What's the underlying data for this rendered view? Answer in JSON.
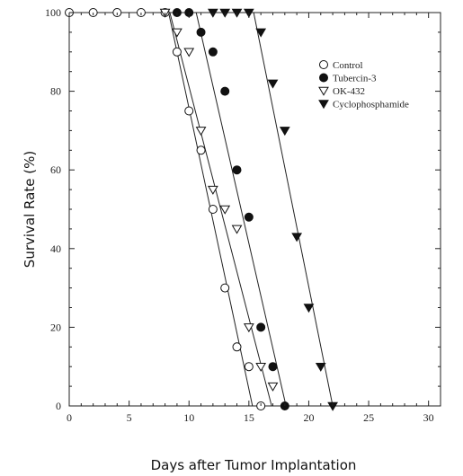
{
  "chart_data": {
    "type": "line",
    "title": "",
    "xlabel": "Days after Tumor Implantation",
    "ylabel": "Survival  Rate (%)",
    "xlim": [
      0,
      31
    ],
    "ylim": [
      0,
      100
    ],
    "x_ticks": [
      0,
      5,
      10,
      15,
      20,
      25,
      30
    ],
    "y_ticks": [
      0,
      20,
      40,
      60,
      80,
      100
    ],
    "grid": false,
    "legend_position": "top-right",
    "series": [
      {
        "name": "Control",
        "marker": "circle-open",
        "x": [
          0,
          2,
          4,
          6,
          8,
          9,
          10,
          11,
          12,
          13,
          14,
          15,
          16
        ],
        "y": [
          100,
          100,
          100,
          100,
          100,
          90,
          75,
          65,
          50,
          30,
          15,
          10,
          0
        ],
        "fit": [
          [
            8.3,
            100
          ],
          [
            15.3,
            0
          ]
        ]
      },
      {
        "name": "Tubercin-3",
        "marker": "circle-filled",
        "x": [
          9,
          10,
          11,
          12,
          13,
          14,
          15,
          16,
          17,
          18
        ],
        "y": [
          100,
          100,
          95,
          90,
          80,
          60,
          48,
          20,
          10,
          0
        ],
        "fit": [
          [
            10.6,
            100
          ],
          [
            18.1,
            0
          ]
        ]
      },
      {
        "name": "OK-432",
        "marker": "triangle-down-open",
        "x": [
          8,
          9,
          10,
          11,
          12,
          13,
          14,
          15,
          16,
          17
        ],
        "y": [
          100,
          95,
          90,
          70,
          55,
          50,
          45,
          20,
          10,
          5
        ],
        "fit": [
          [
            8.4,
            100
          ],
          [
            16.9,
            0
          ]
        ]
      },
      {
        "name": "Cyclophosphamide",
        "marker": "triangle-down-filled",
        "x": [
          12,
          13,
          14,
          15,
          16,
          17,
          18,
          19,
          20,
          21,
          22
        ],
        "y": [
          100,
          100,
          100,
          100,
          95,
          82,
          70,
          43,
          25,
          10,
          0
        ],
        "fit": [
          [
            15.4,
            100
          ],
          [
            22.0,
            0
          ]
        ]
      }
    ]
  }
}
